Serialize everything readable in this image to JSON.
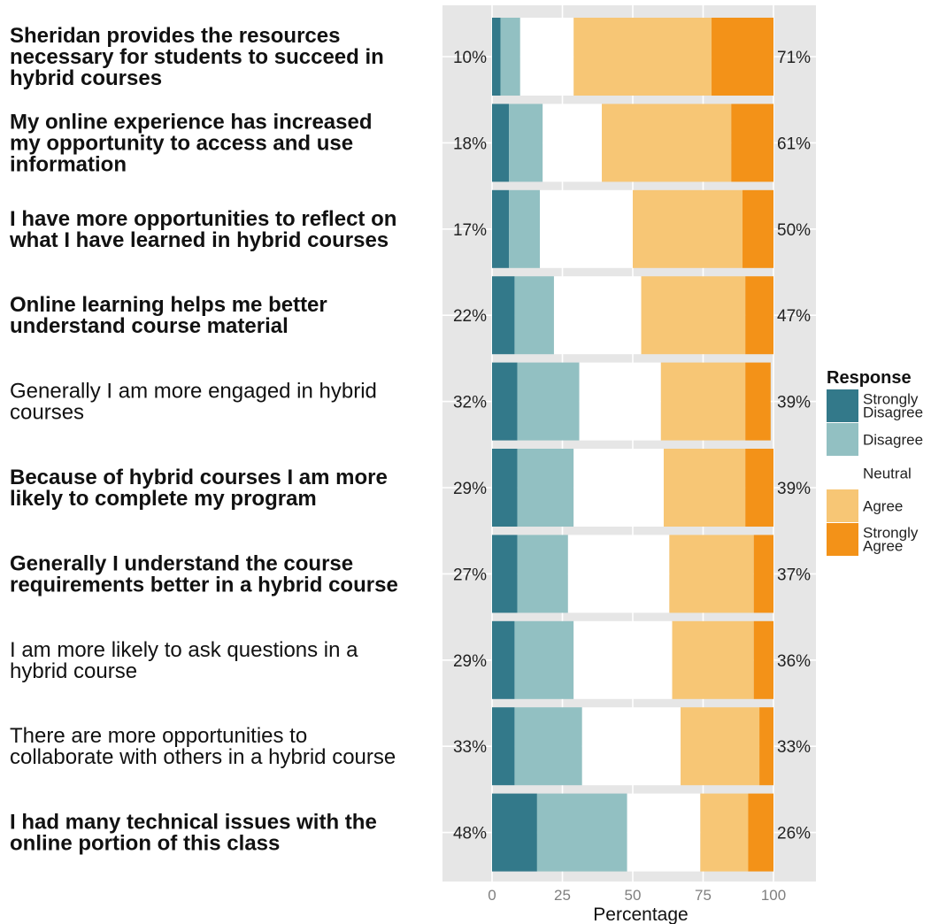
{
  "chart_data": {
    "type": "bar",
    "stacked": true,
    "orientation": "horizontal",
    "xlabel": "Percentage",
    "xlim": [
      0,
      100
    ],
    "x_ticks": [
      "0",
      "25",
      "50",
      "75",
      "100"
    ],
    "grid": true,
    "legend_title": "Response",
    "legend_position": "right",
    "response_levels": [
      "Strongly Disagree",
      "Disagree",
      "Neutral",
      "Agree",
      "Strongly Agree"
    ],
    "colors": {
      "Strongly Disagree": "#33798a",
      "Disagree": "#92c0c2",
      "Neutral": "#ffffff",
      "Agree": "#f7c675",
      "Strongly Agree": "#f39218",
      "panel": "#e6e6e6"
    },
    "items": [
      {
        "label": "Sheridan provides the resources necessary for students to succeed in hybrid courses",
        "lines": [
          "Sheridan provides the resources",
          "necessary for students to succeed in",
          "hybrid courses"
        ],
        "bold": true,
        "left_pct": "10%",
        "right_pct": "71%",
        "values": [
          3,
          7,
          19,
          49,
          22
        ]
      },
      {
        "label": "My online experience has increased my opportunity to access and use information",
        "lines": [
          "My online experience has increased",
          "my opportunity to access and use",
          "information"
        ],
        "bold": true,
        "left_pct": "18%",
        "right_pct": "61%",
        "values": [
          6,
          12,
          21,
          46,
          15
        ]
      },
      {
        "label": "I have more opportunities to reflect on what I have learned in hybrid courses",
        "lines": [
          "I have more opportunities to reflect on",
          "what I have learned in hybrid courses"
        ],
        "bold": true,
        "left_pct": "17%",
        "right_pct": "50%",
        "values": [
          6,
          11,
          33,
          39,
          11
        ]
      },
      {
        "label": "Online learning helps me better understand course material",
        "lines": [
          "Online learning helps me better",
          "understand course material"
        ],
        "bold": true,
        "left_pct": "22%",
        "right_pct": "47%",
        "values": [
          8,
          14,
          31,
          37,
          10
        ]
      },
      {
        "label": "Generally I am more engaged in hybrid courses",
        "lines": [
          "Generally I am more engaged in hybrid",
          "courses"
        ],
        "bold": false,
        "left_pct": "32%",
        "right_pct": "39%",
        "values": [
          9,
          22,
          29,
          30,
          9
        ]
      },
      {
        "label": "Because of hybrid courses I am more likely to complete my program",
        "lines": [
          "Because of hybrid courses I am more",
          "likely to complete my program"
        ],
        "bold": true,
        "left_pct": "29%",
        "right_pct": "39%",
        "values": [
          9,
          20,
          32,
          29,
          10
        ]
      },
      {
        "label": "Generally I understand the course requirements better in a hybrid course",
        "lines": [
          "Generally I understand the course",
          "requirements better in a hybrid course"
        ],
        "bold": true,
        "left_pct": "27%",
        "right_pct": "37%",
        "values": [
          9,
          18,
          36,
          30,
          7
        ]
      },
      {
        "label": "I am more likely to ask questions in a hybrid course",
        "lines": [
          "I am more likely to ask questions in a",
          "hybrid course"
        ],
        "bold": false,
        "left_pct": "29%",
        "right_pct": "36%",
        "values": [
          8,
          21,
          35,
          29,
          7
        ]
      },
      {
        "label": "There are more opportunities to collaborate with others in a hybrid course",
        "lines": [
          "There are more opportunities to",
          "collaborate with others in a hybrid course"
        ],
        "bold": false,
        "left_pct": "33%",
        "right_pct": "33%",
        "values": [
          8,
          24,
          35,
          28,
          5
        ]
      },
      {
        "label": "I had many technical issues with the online portion of this class",
        "lines": [
          "I had many technical issues with the",
          "online portion of this class"
        ],
        "bold": true,
        "left_pct": "48%",
        "right_pct": "26%",
        "values": [
          16,
          32,
          26,
          17,
          9
        ]
      }
    ]
  }
}
